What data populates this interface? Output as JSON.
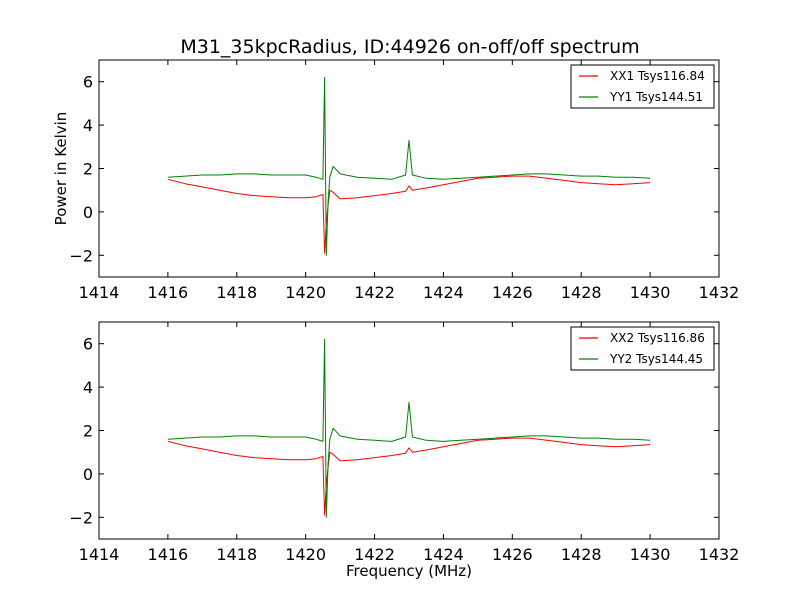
{
  "title": "M31_35kpcRadius, ID:44926 on-off/off spectrum",
  "chart_data": [
    {
      "type": "line",
      "xlabel": "",
      "ylabel": "Power in Kelvin",
      "xlim": [
        1414,
        1432
      ],
      "ylim": [
        -3,
        7
      ],
      "xticks": [
        1414,
        1416,
        1418,
        1420,
        1422,
        1424,
        1426,
        1428,
        1430,
        1432
      ],
      "yticks": [
        -2,
        0,
        2,
        4,
        6
      ],
      "legend": "top-right",
      "series": [
        {
          "name": "XX1 Tsys116.84",
          "color": "#ff0000",
          "x": [
            1416.0,
            1416.5,
            1417.0,
            1417.5,
            1418.0,
            1418.5,
            1419.0,
            1419.5,
            1420.0,
            1420.3,
            1420.5,
            1420.55,
            1420.6,
            1420.65,
            1420.7,
            1420.8,
            1421.0,
            1421.5,
            1422.0,
            1422.5,
            1422.9,
            1423.0,
            1423.1,
            1423.5,
            1424.0,
            1424.5,
            1425.0,
            1425.5,
            1426.0,
            1426.5,
            1427.0,
            1427.5,
            1428.0,
            1428.5,
            1429.0,
            1429.5,
            1430.0
          ],
          "y": [
            1.5,
            1.3,
            1.15,
            1.0,
            0.85,
            0.75,
            0.7,
            0.65,
            0.65,
            0.7,
            0.8,
            -1.9,
            -0.5,
            0.3,
            1.0,
            0.9,
            0.6,
            0.65,
            0.75,
            0.85,
            0.95,
            1.2,
            1.0,
            1.1,
            1.25,
            1.4,
            1.55,
            1.6,
            1.65,
            1.65,
            1.55,
            1.45,
            1.35,
            1.3,
            1.25,
            1.3,
            1.35
          ]
        },
        {
          "name": "YY1 Tsys144.51",
          "color": "#008000",
          "x": [
            1416.0,
            1416.5,
            1417.0,
            1417.5,
            1418.0,
            1418.5,
            1419.0,
            1419.5,
            1420.0,
            1420.3,
            1420.5,
            1420.55,
            1420.6,
            1420.65,
            1420.7,
            1420.8,
            1421.0,
            1421.5,
            1422.0,
            1422.5,
            1422.9,
            1423.0,
            1423.1,
            1423.5,
            1424.0,
            1424.5,
            1425.0,
            1425.5,
            1426.0,
            1426.5,
            1427.0,
            1427.5,
            1428.0,
            1428.5,
            1429.0,
            1429.5,
            1430.0
          ],
          "y": [
            1.6,
            1.65,
            1.7,
            1.7,
            1.75,
            1.75,
            1.7,
            1.7,
            1.7,
            1.6,
            1.5,
            6.2,
            -2.0,
            0.5,
            1.6,
            2.1,
            1.75,
            1.6,
            1.55,
            1.5,
            1.7,
            3.3,
            1.7,
            1.55,
            1.5,
            1.55,
            1.6,
            1.65,
            1.7,
            1.75,
            1.75,
            1.7,
            1.65,
            1.65,
            1.6,
            1.6,
            1.55
          ]
        }
      ]
    },
    {
      "type": "line",
      "xlabel": "Frequency (MHz)",
      "ylabel": "",
      "xlim": [
        1414,
        1432
      ],
      "ylim": [
        -3,
        7
      ],
      "xticks": [
        1414,
        1416,
        1418,
        1420,
        1422,
        1424,
        1426,
        1428,
        1430,
        1432
      ],
      "yticks": [
        -2,
        0,
        2,
        4,
        6
      ],
      "legend": "top-right",
      "series": [
        {
          "name": "XX2 Tsys116.86",
          "color": "#ff0000",
          "x": [
            1416.0,
            1416.5,
            1417.0,
            1417.5,
            1418.0,
            1418.5,
            1419.0,
            1419.5,
            1420.0,
            1420.3,
            1420.5,
            1420.55,
            1420.6,
            1420.65,
            1420.7,
            1420.8,
            1421.0,
            1421.5,
            1422.0,
            1422.5,
            1422.9,
            1423.0,
            1423.1,
            1423.5,
            1424.0,
            1424.5,
            1425.0,
            1425.5,
            1426.0,
            1426.5,
            1427.0,
            1427.5,
            1428.0,
            1428.5,
            1429.0,
            1429.5,
            1430.0
          ],
          "y": [
            1.5,
            1.3,
            1.15,
            1.0,
            0.85,
            0.75,
            0.7,
            0.65,
            0.65,
            0.7,
            0.8,
            -1.9,
            -0.5,
            0.3,
            1.0,
            0.9,
            0.6,
            0.65,
            0.75,
            0.85,
            0.95,
            1.2,
            1.0,
            1.1,
            1.25,
            1.4,
            1.55,
            1.6,
            1.65,
            1.65,
            1.55,
            1.45,
            1.35,
            1.3,
            1.25,
            1.3,
            1.35
          ]
        },
        {
          "name": "YY2 Tsys144.45",
          "color": "#008000",
          "x": [
            1416.0,
            1416.5,
            1417.0,
            1417.5,
            1418.0,
            1418.5,
            1419.0,
            1419.5,
            1420.0,
            1420.3,
            1420.5,
            1420.55,
            1420.6,
            1420.65,
            1420.7,
            1420.8,
            1421.0,
            1421.5,
            1422.0,
            1422.5,
            1422.9,
            1423.0,
            1423.1,
            1423.5,
            1424.0,
            1424.5,
            1425.0,
            1425.5,
            1426.0,
            1426.5,
            1427.0,
            1427.5,
            1428.0,
            1428.5,
            1429.0,
            1429.5,
            1430.0
          ],
          "y": [
            1.6,
            1.65,
            1.7,
            1.7,
            1.75,
            1.75,
            1.7,
            1.7,
            1.7,
            1.6,
            1.5,
            6.2,
            -2.0,
            0.5,
            1.6,
            2.1,
            1.75,
            1.6,
            1.55,
            1.5,
            1.7,
            3.3,
            1.7,
            1.55,
            1.5,
            1.55,
            1.6,
            1.65,
            1.7,
            1.75,
            1.75,
            1.7,
            1.65,
            1.65,
            1.6,
            1.6,
            1.55
          ]
        }
      ]
    }
  ]
}
